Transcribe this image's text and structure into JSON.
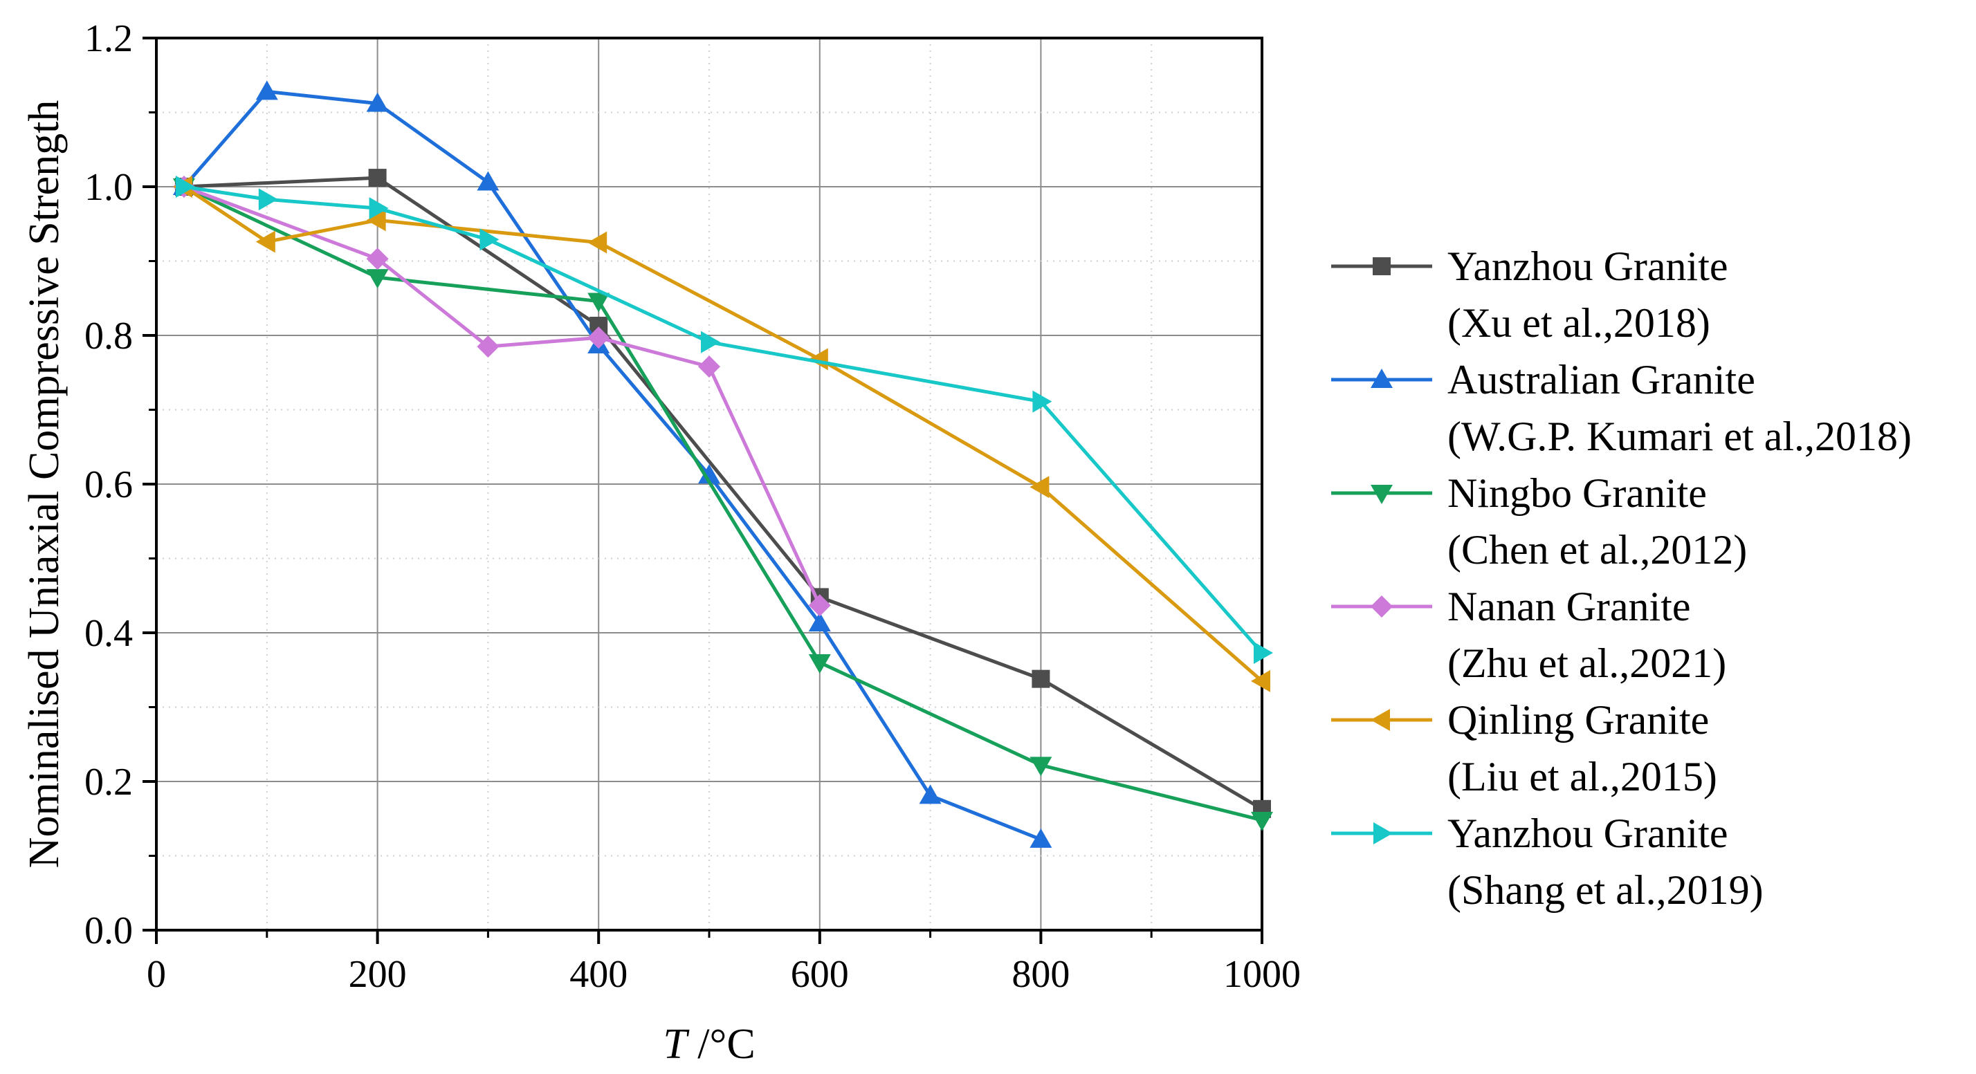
{
  "chart_data": {
    "type": "line",
    "title": "",
    "xlabel_italic": "T",
    "xlabel_unit": " /°C",
    "ylabel": "Nominalised Uniaxial Compressive Strength",
    "xlim": [
      0,
      1000
    ],
    "ylim": [
      0,
      1.2
    ],
    "grid": true,
    "legend_position": "right",
    "x_ticks": [
      "0",
      "200",
      "400",
      "600",
      "800",
      "1000"
    ],
    "y_ticks": [
      "0.0",
      "0.2",
      "0.4",
      "0.6",
      "0.8",
      "1.0",
      "1.2"
    ],
    "series": [
      {
        "name": "Yanzhou Granite",
        "source": "(Xu et al.,2018)",
        "color": "#4d4d4d",
        "marker": "square",
        "x": [
          25,
          200,
          400,
          600,
          800,
          1000
        ],
        "y": [
          1.0,
          1.012,
          0.813,
          0.448,
          0.338,
          0.163
        ]
      },
      {
        "name": "Australian Granite",
        "source": "(W.G.P. Kumari et al.,2018)",
        "color": "#1f6fdb",
        "marker": "triangle-up",
        "x": [
          25,
          100,
          200,
          300,
          400,
          500,
          600,
          700,
          800
        ],
        "y": [
          1.0,
          1.128,
          1.112,
          1.006,
          0.787,
          0.612,
          0.413,
          0.181,
          0.122
        ]
      },
      {
        "name": "Ningbo Granite",
        "source": "(Chen et al.,2012)",
        "color": "#16a05a",
        "marker": "triangle-down",
        "x": [
          25,
          200,
          400,
          600,
          800,
          1000
        ],
        "y": [
          1.0,
          0.878,
          0.846,
          0.36,
          0.222,
          0.148
        ]
      },
      {
        "name": "Nanan Granite",
        "source": "(Zhu et al.,2021)",
        "color": "#cc79d9",
        "marker": "diamond",
        "x": [
          25,
          200,
          300,
          400,
          500,
          600
        ],
        "y": [
          1.0,
          0.903,
          0.785,
          0.797,
          0.758,
          0.437
        ]
      },
      {
        "name": "Qinling Granite",
        "source": "(Liu et al.,2015)",
        "color": "#d99a10",
        "marker": "triangle-left",
        "x": [
          25,
          100,
          200,
          400,
          600,
          800,
          1000
        ],
        "y": [
          1.0,
          0.926,
          0.955,
          0.925,
          0.768,
          0.596,
          0.335
        ]
      },
      {
        "name": "Yanzhou Granite",
        "source": "(Shang et al.,2019)",
        "color": "#18c7c7",
        "marker": "triangle-right",
        "x": [
          25,
          100,
          200,
          300,
          500,
          800,
          1000
        ],
        "y": [
          1.0,
          0.983,
          0.971,
          0.929,
          0.791,
          0.711,
          0.373
        ]
      }
    ]
  }
}
